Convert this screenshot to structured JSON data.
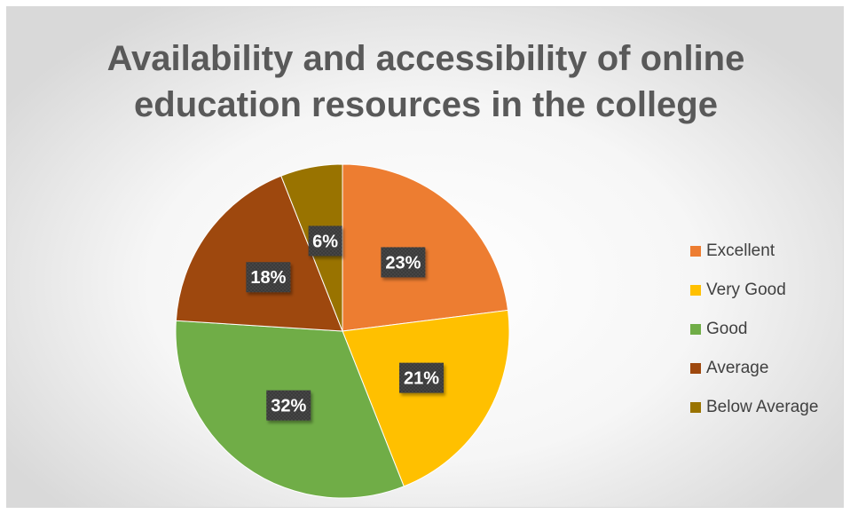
{
  "chart_data": {
    "type": "pie",
    "title": "Availability and accessibility of online\neducation resources in the college",
    "categories": [
      "Excellent",
      "Very Good",
      "Good",
      "Average",
      "Below Average"
    ],
    "values": [
      23,
      21,
      32,
      18,
      6
    ],
    "labels": [
      "23%",
      "21%",
      "32%",
      "18%",
      "6%"
    ],
    "colors": [
      "#ED7D31",
      "#FFC000",
      "#70AD47",
      "#9E480E",
      "#997300"
    ],
    "legend_position": "right"
  }
}
